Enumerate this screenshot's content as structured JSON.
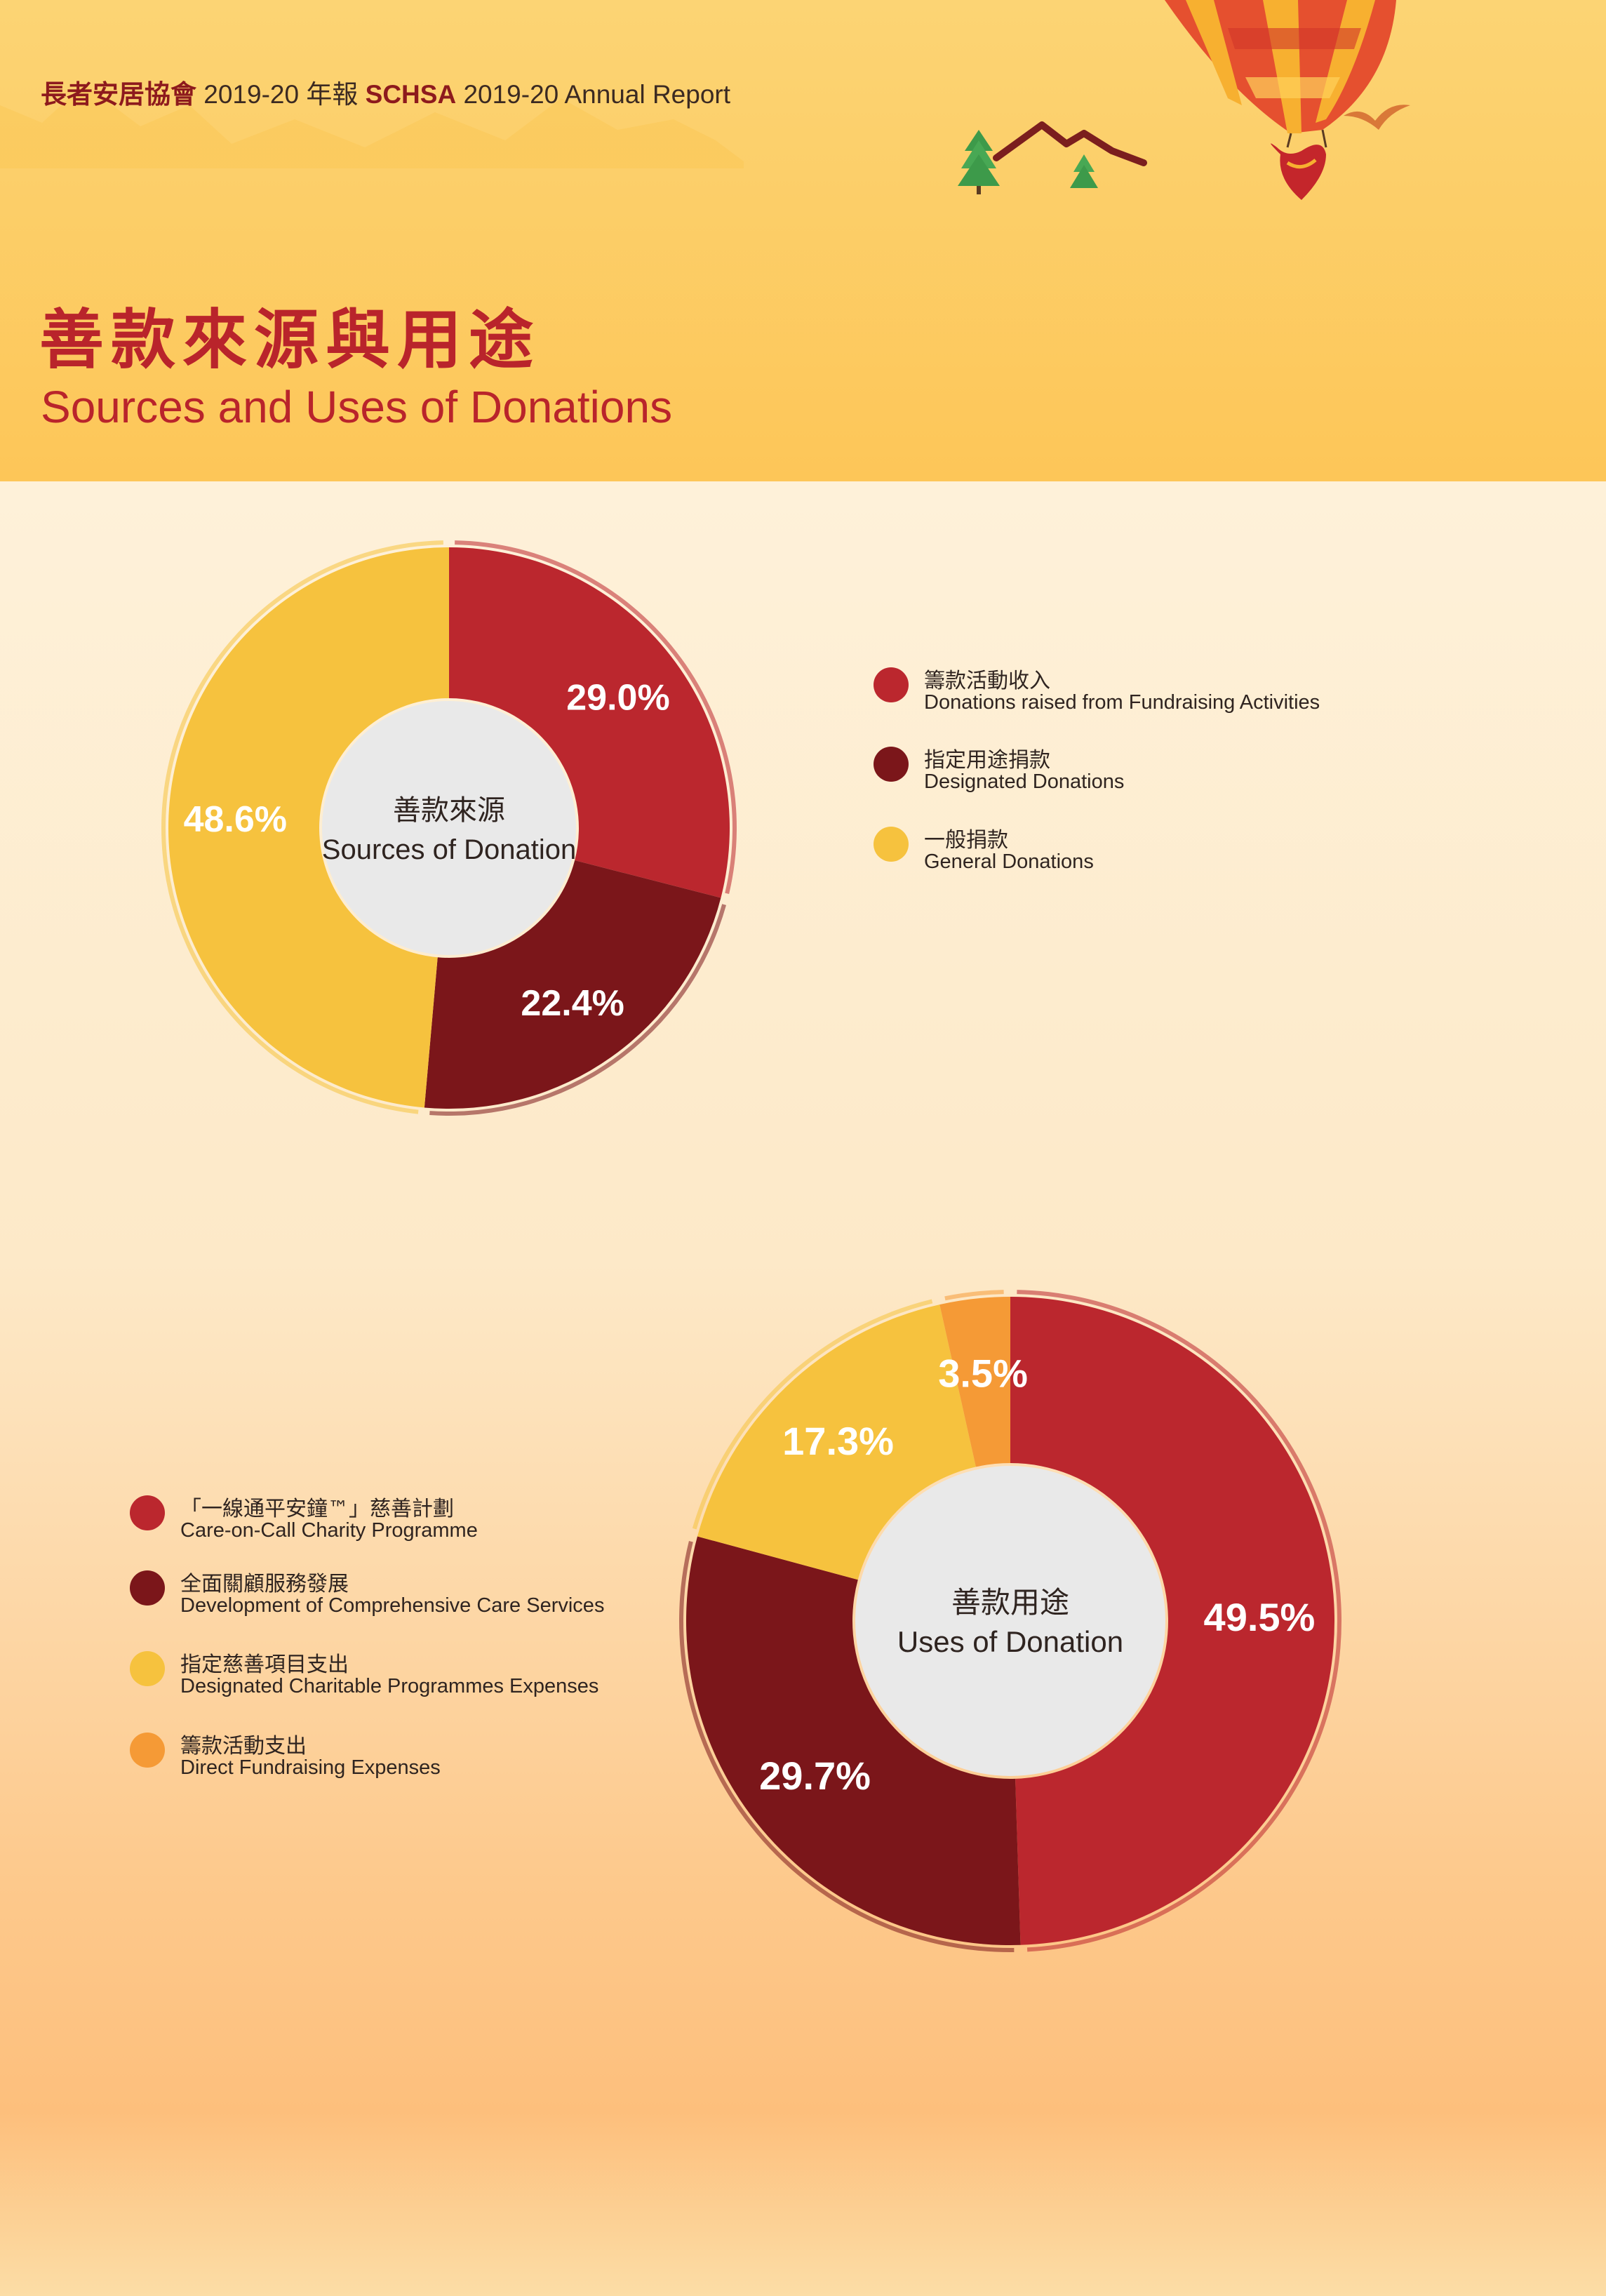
{
  "header": {
    "running_title_org_zh": "長者安居協會",
    "running_title_year_zh": " 2019-20 年報 ",
    "running_title_org_en": "SCHSA",
    "running_title_year_en": " 2019-20 Annual Report",
    "title_zh": "善款來源與用途",
    "title_en": "Sources and Uses of Donations"
  },
  "colors": {
    "red": "#bb272e",
    "dark_red": "#7b161a",
    "yellow": "#f6c23e",
    "orange": "#f59a36",
    "center": "#e9e9e9"
  },
  "chart_data": [
    {
      "type": "pie",
      "center_label_zh": "善款來源",
      "center_label_en": "Sources of Donation",
      "categories": [
        {
          "label_zh": "籌款活動收入",
          "label_en": "Donations raised from Fundraising Activities",
          "value": 29.0,
          "display": "29.0%",
          "color": "red"
        },
        {
          "label_zh": "指定用途捐款",
          "label_en": "Designated Donations",
          "value": 22.4,
          "display": "22.4%",
          "color": "dark_red"
        },
        {
          "label_zh": "一般捐款",
          "label_en": "General Donations",
          "value": 48.6,
          "display": "48.6%",
          "color": "yellow"
        }
      ]
    },
    {
      "type": "pie",
      "center_label_zh": "善款用途",
      "center_label_en": "Uses of Donation",
      "categories": [
        {
          "label_zh": "「一線通平安鐘™」慈善計劃",
          "label_en": "Care-on-Call Charity Programme",
          "value": 49.5,
          "display": "49.5%",
          "color": "red"
        },
        {
          "label_zh": "全面關顧服務發展",
          "label_en": "Development of Comprehensive Care Services",
          "value": 29.7,
          "display": "29.7%",
          "color": "dark_red"
        },
        {
          "label_zh": "指定慈善項目支出",
          "label_en": "Designated Charitable Programmes Expenses",
          "value": 17.3,
          "display": "17.3%",
          "color": "yellow"
        },
        {
          "label_zh": "籌款活動支出",
          "label_en": "Direct Fundraising Expenses",
          "value": 3.5,
          "display": "3.5%",
          "color": "orange"
        }
      ]
    }
  ]
}
